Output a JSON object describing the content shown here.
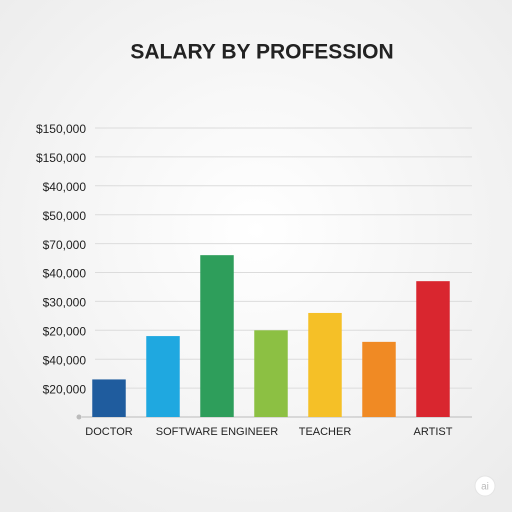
{
  "chart_data": {
    "type": "bar",
    "title": "SALARY BY PROFESSION",
    "categories": [
      "DOCTOR",
      null,
      "SOFTWARE ENGINEER",
      null,
      "TEACHER",
      null,
      "ARTIST"
    ],
    "values": [
      1.3,
      2.8,
      5.6,
      3.0,
      3.6,
      2.6,
      4.7
    ],
    "colors": [
      "#1f5c9e",
      "#1fa8e0",
      "#2e9e5b",
      "#8cc043",
      "#f5c027",
      "#f08a24",
      "#d9262f"
    ],
    "ylim": [
      0,
      10
    ],
    "yticks": [
      {
        "value": 1,
        "label": "$20,000"
      },
      {
        "value": 2,
        "label": "$40,000"
      },
      {
        "value": 3,
        "label": "$20,000"
      },
      {
        "value": 4,
        "label": "$30,000"
      },
      {
        "value": 5,
        "label": "$40,000"
      },
      {
        "value": 6,
        "label": "$70,000"
      },
      {
        "value": 7,
        "label": "$50,000"
      },
      {
        "value": 8,
        "label": "$40,000"
      },
      {
        "value": 9,
        "label": "$150,000"
      },
      {
        "value": 10,
        "label": "$150,000"
      }
    ],
    "grid": true
  },
  "watermark": "ai"
}
